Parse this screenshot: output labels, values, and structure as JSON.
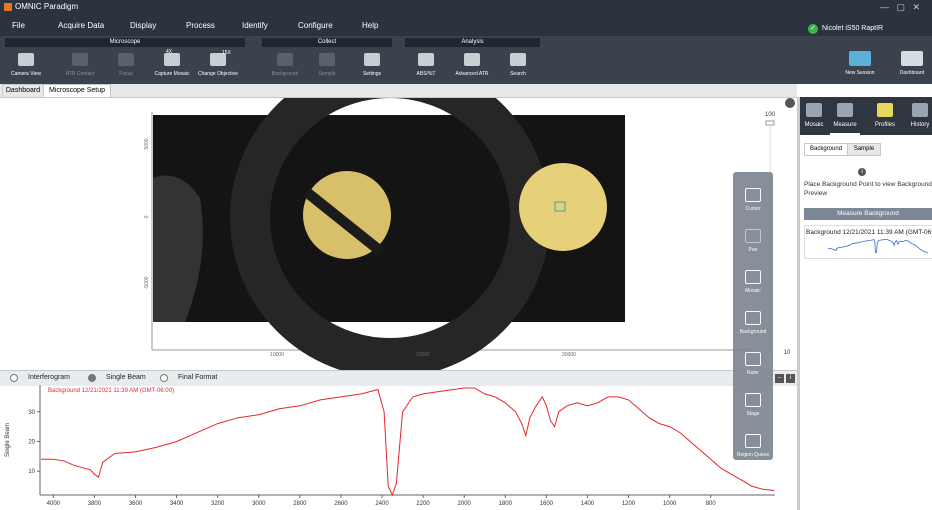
{
  "app": {
    "title": "OMNIC Paradigm",
    "menu": [
      "File",
      "Acquire Data",
      "Display",
      "Process",
      "Identify",
      "Configure",
      "Help"
    ],
    "instrument": "Nicolet iS50 RaptIR"
  },
  "toolbar": {
    "groups": [
      {
        "title": "Microscope",
        "buttons": [
          "Camera View",
          "ATR Contact",
          "Focus",
          "Capture Mosaic",
          "Change Objective"
        ]
      },
      {
        "title": "Collect",
        "buttons": [
          "Background",
          "Sample",
          "Settings"
        ]
      },
      {
        "title": "Analysis",
        "buttons": [
          "ABS/%T",
          "Advanced ATR",
          "Search"
        ]
      }
    ],
    "objective_labels": [
      "4X",
      "15X"
    ],
    "right_buttons": [
      "New Session",
      "Dashboard"
    ]
  },
  "tabs": [
    "Dashboard",
    "Microscope Setup"
  ],
  "image_view": {
    "yticks": [
      5000,
      0,
      -5000
    ],
    "xticks": [
      10000,
      20000,
      30000
    ],
    "scale_bar": "5 mm",
    "slider": [
      100,
      10
    ]
  },
  "tools": [
    "Cursor",
    "Pan",
    "Mosaic",
    "Background",
    "Ruler",
    "Stage",
    "Region Queue"
  ],
  "side_panel": {
    "tabs": [
      "Mosaic",
      "Measure",
      "Profiles",
      "History"
    ],
    "subtabs": [
      "Background",
      "Sample"
    ],
    "info": "Place Background Point to view Background Preview",
    "button": "Measure Background",
    "item": "Background 12/21/2021 11:39 AM (GMT-06:00)"
  },
  "spectrum": {
    "modes": [
      "Interferogram",
      "Single Beam",
      "Final Format"
    ],
    "ylabel": "Single Beam",
    "xlim": [
      4065,
      487
    ],
    "ylim": [
      2,
      39
    ],
    "xticks": [
      4000,
      3800,
      3600,
      3400,
      3200,
      3000,
      2800,
      2600,
      2400,
      2200,
      2000,
      1800,
      1600,
      1400,
      1200,
      1000,
      800
    ],
    "yticks": [
      10,
      20,
      30
    ],
    "series": [
      {
        "name": "Background 12/21/2021 11:39 AM (GMT-06:00)",
        "color": "#e8262a",
        "x": [
          4060,
          4000,
          3950,
          3900,
          3850,
          3820,
          3800,
          3780,
          3760,
          3700,
          3600,
          3500,
          3400,
          3300,
          3200,
          3100,
          3000,
          2900,
          2800,
          2700,
          2600,
          2500,
          2420,
          2390,
          2370,
          2350,
          2330,
          2300,
          2250,
          2200,
          2100,
          2000,
          1950,
          1900,
          1850,
          1800,
          1750,
          1720,
          1700,
          1680,
          1650,
          1620,
          1600,
          1580,
          1560,
          1540,
          1500,
          1450,
          1400,
          1350,
          1300,
          1250,
          1200,
          1150,
          1100,
          1050,
          1000,
          950,
          900,
          850,
          800,
          750,
          700,
          650,
          600,
          550,
          490
        ],
        "values": [
          14,
          14,
          13.5,
          12,
          11,
          10.5,
          9,
          8,
          13,
          16,
          16.5,
          18,
          20,
          23,
          26,
          28,
          29,
          31,
          32,
          34,
          35,
          36,
          37.5,
          30,
          5,
          2,
          6,
          30,
          35,
          36,
          37,
          38,
          38,
          36,
          35,
          33,
          30,
          26,
          22,
          28,
          32,
          35,
          32,
          27,
          25,
          30,
          32,
          33,
          32,
          33,
          35,
          35,
          34,
          31,
          28,
          26,
          25,
          23,
          20,
          17,
          14,
          11,
          9,
          7,
          5,
          4,
          3.5
        ]
      }
    ]
  }
}
